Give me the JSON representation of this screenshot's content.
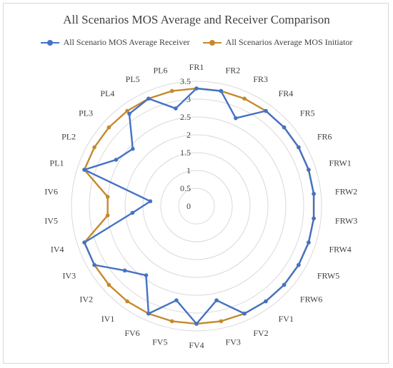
{
  "colors": {
    "receiver": "#4472c4",
    "initiator": "#c5892b",
    "grid": "#d9d9d9",
    "label": "#404040"
  },
  "chart_data": {
    "type": "radar",
    "title": "All Scenarios MOS Average and Receiver Comparison",
    "legend_position": "top",
    "grid": true,
    "rlim": [
      0,
      3.5
    ],
    "tick_labels": [
      "0",
      "0.5",
      "1",
      "1.5",
      "2",
      "2.5",
      "3",
      "3.5"
    ],
    "categories": [
      "FR1",
      "FR2",
      "FR3",
      "FR4",
      "FR5",
      "FR6",
      "FRW1",
      "FRW2",
      "FRW3",
      "FRW4",
      "FRW5",
      "FRW6",
      "FV1",
      "FV2",
      "FV3",
      "FV4",
      "FV5",
      "FV6",
      "IV1",
      "IV2",
      "IV3",
      "IV4",
      "IV5",
      "IV6",
      "PL1",
      "PL2",
      "PL3",
      "PL4",
      "PL5",
      "PL6"
    ],
    "series": [
      {
        "name": "All Scenario MOS Average Receiver",
        "values": [
          3.3,
          3.3,
          2.7,
          3.3,
          3.3,
          3.3,
          3.3,
          3.3,
          3.3,
          3.3,
          3.3,
          3.3,
          3.3,
          3.3,
          2.7,
          3.3,
          2.7,
          3.3,
          2.4,
          2.7,
          3.3,
          3.3,
          1.8,
          1.3,
          3.3,
          2.6,
          2.4,
          3.2,
          3.3,
          2.8
        ]
      },
      {
        "name": "All Scenarios Average MOS Initiator",
        "values": [
          3.3,
          3.3,
          3.3,
          3.3,
          3.3,
          3.3,
          3.3,
          3.3,
          3.3,
          3.3,
          3.3,
          3.3,
          3.3,
          3.3,
          3.3,
          3.3,
          3.3,
          3.3,
          3.3,
          3.3,
          3.3,
          3.3,
          2.5,
          2.5,
          3.3,
          3.3,
          3.3,
          3.3,
          3.3,
          3.3
        ]
      }
    ]
  }
}
